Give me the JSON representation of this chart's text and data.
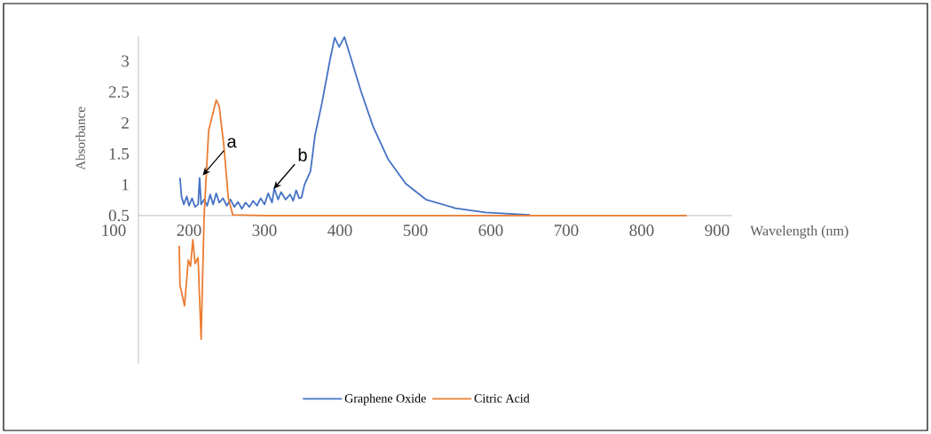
{
  "chart_data": {
    "type": "line",
    "xlabel": "Wavelength (nm)",
    "ylabel": "Absorbance",
    "xlim": [
      100,
      920
    ],
    "ylim": [
      -1.9,
      3.4
    ],
    "xticks": [
      100,
      200,
      300,
      400,
      500,
      600,
      700,
      800,
      900
    ],
    "yticks": [
      0.5,
      1,
      1.5,
      2,
      2.5,
      3
    ],
    "legend": "bottom",
    "annotations": [
      {
        "text": "a",
        "x": 218,
        "y": 1.15
      },
      {
        "text": "b",
        "x": 312,
        "y": 0.93
      }
    ],
    "series": [
      {
        "name": "Graphene Oxide",
        "color": "#4472c4",
        "x": [
          188,
          190,
          193,
          197,
          200,
          204,
          208,
          212,
          214,
          216,
          220,
          224,
          228,
          232,
          236,
          240,
          245,
          250,
          255,
          260,
          265,
          270,
          275,
          280,
          285,
          290,
          295,
          300,
          305,
          310,
          313,
          318,
          322,
          328,
          334,
          338,
          342,
          346,
          349,
          353,
          361,
          367,
          376,
          387,
          393,
          399,
          406,
          410,
          416,
          428,
          444,
          464,
          487,
          514,
          553,
          593,
          652
        ],
        "values": [
          1.11,
          0.81,
          0.68,
          0.81,
          0.66,
          0.78,
          0.64,
          0.68,
          1.11,
          0.68,
          0.76,
          0.66,
          0.84,
          0.68,
          0.86,
          0.71,
          0.78,
          0.66,
          0.76,
          0.64,
          0.72,
          0.61,
          0.71,
          0.64,
          0.74,
          0.66,
          0.78,
          0.68,
          0.86,
          0.71,
          0.94,
          0.76,
          0.88,
          0.76,
          0.84,
          0.74,
          0.91,
          0.78,
          0.79,
          1.0,
          1.22,
          1.8,
          2.31,
          3.03,
          3.38,
          3.23,
          3.39,
          3.23,
          2.99,
          2.51,
          1.94,
          1.41,
          1.02,
          0.76,
          0.62,
          0.55,
          0.51
        ]
      },
      {
        "name": "Citric Acid",
        "color": "#ed7d31",
        "x": [
          187,
          188,
          194,
          199,
          202,
          205,
          208,
          212,
          216,
          220,
          226,
          232,
          236,
          240,
          246,
          252,
          258,
          300,
          500,
          860
        ],
        "values": [
          0.01,
          -0.63,
          -0.96,
          -0.22,
          -0.32,
          0.11,
          -0.28,
          -0.18,
          -1.5,
          0.5,
          1.88,
          2.17,
          2.37,
          2.27,
          1.65,
          0.79,
          0.51,
          0.5,
          0.5,
          0.5
        ]
      }
    ]
  }
}
